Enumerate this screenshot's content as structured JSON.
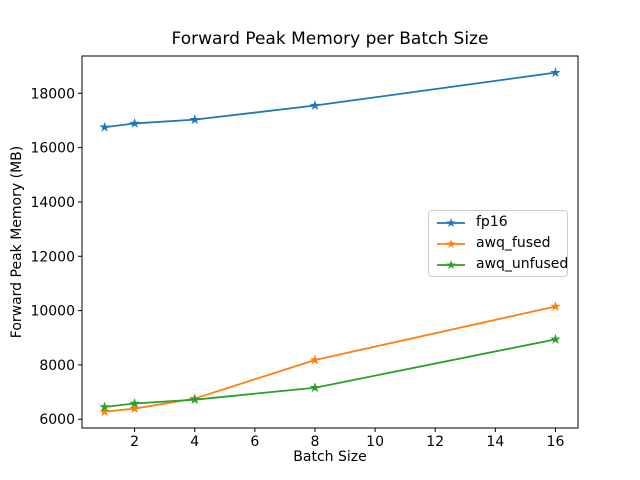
{
  "chart_data": {
    "type": "line",
    "title": "Forward Peak Memory per Batch Size",
    "xlabel": "Batch Size",
    "ylabel": "Forward Peak Memory (MB)",
    "x": [
      1,
      2,
      4,
      8,
      16
    ],
    "series": [
      {
        "name": "fp16",
        "color": "#1f77b4",
        "marker": "star",
        "values": [
          16750,
          16890,
          17030,
          17550,
          18760
        ]
      },
      {
        "name": "awq_fused",
        "color": "#ff7f0e",
        "marker": "star",
        "values": [
          6280,
          6390,
          6760,
          8180,
          10150
        ]
      },
      {
        "name": "awq_unfused",
        "color": "#2ca02c",
        "marker": "star",
        "values": [
          6450,
          6580,
          6720,
          7160,
          8940
        ]
      }
    ],
    "xticks": [
      2,
      4,
      6,
      8,
      10,
      12,
      14,
      16
    ],
    "yticks": [
      6000,
      8000,
      10000,
      12000,
      14000,
      16000,
      18000
    ],
    "xlim": [
      0.25,
      16.75
    ],
    "ylim": [
      5677,
      19373
    ],
    "grid": false,
    "legend": {
      "position": "center right",
      "entries": [
        "fp16",
        "awq_fused",
        "awq_unfused"
      ],
      "border_color": "#cccccc",
      "background": "#ffffff"
    },
    "axis_color": "#000000",
    "text_color": "#000000",
    "background": "#ffffff"
  }
}
